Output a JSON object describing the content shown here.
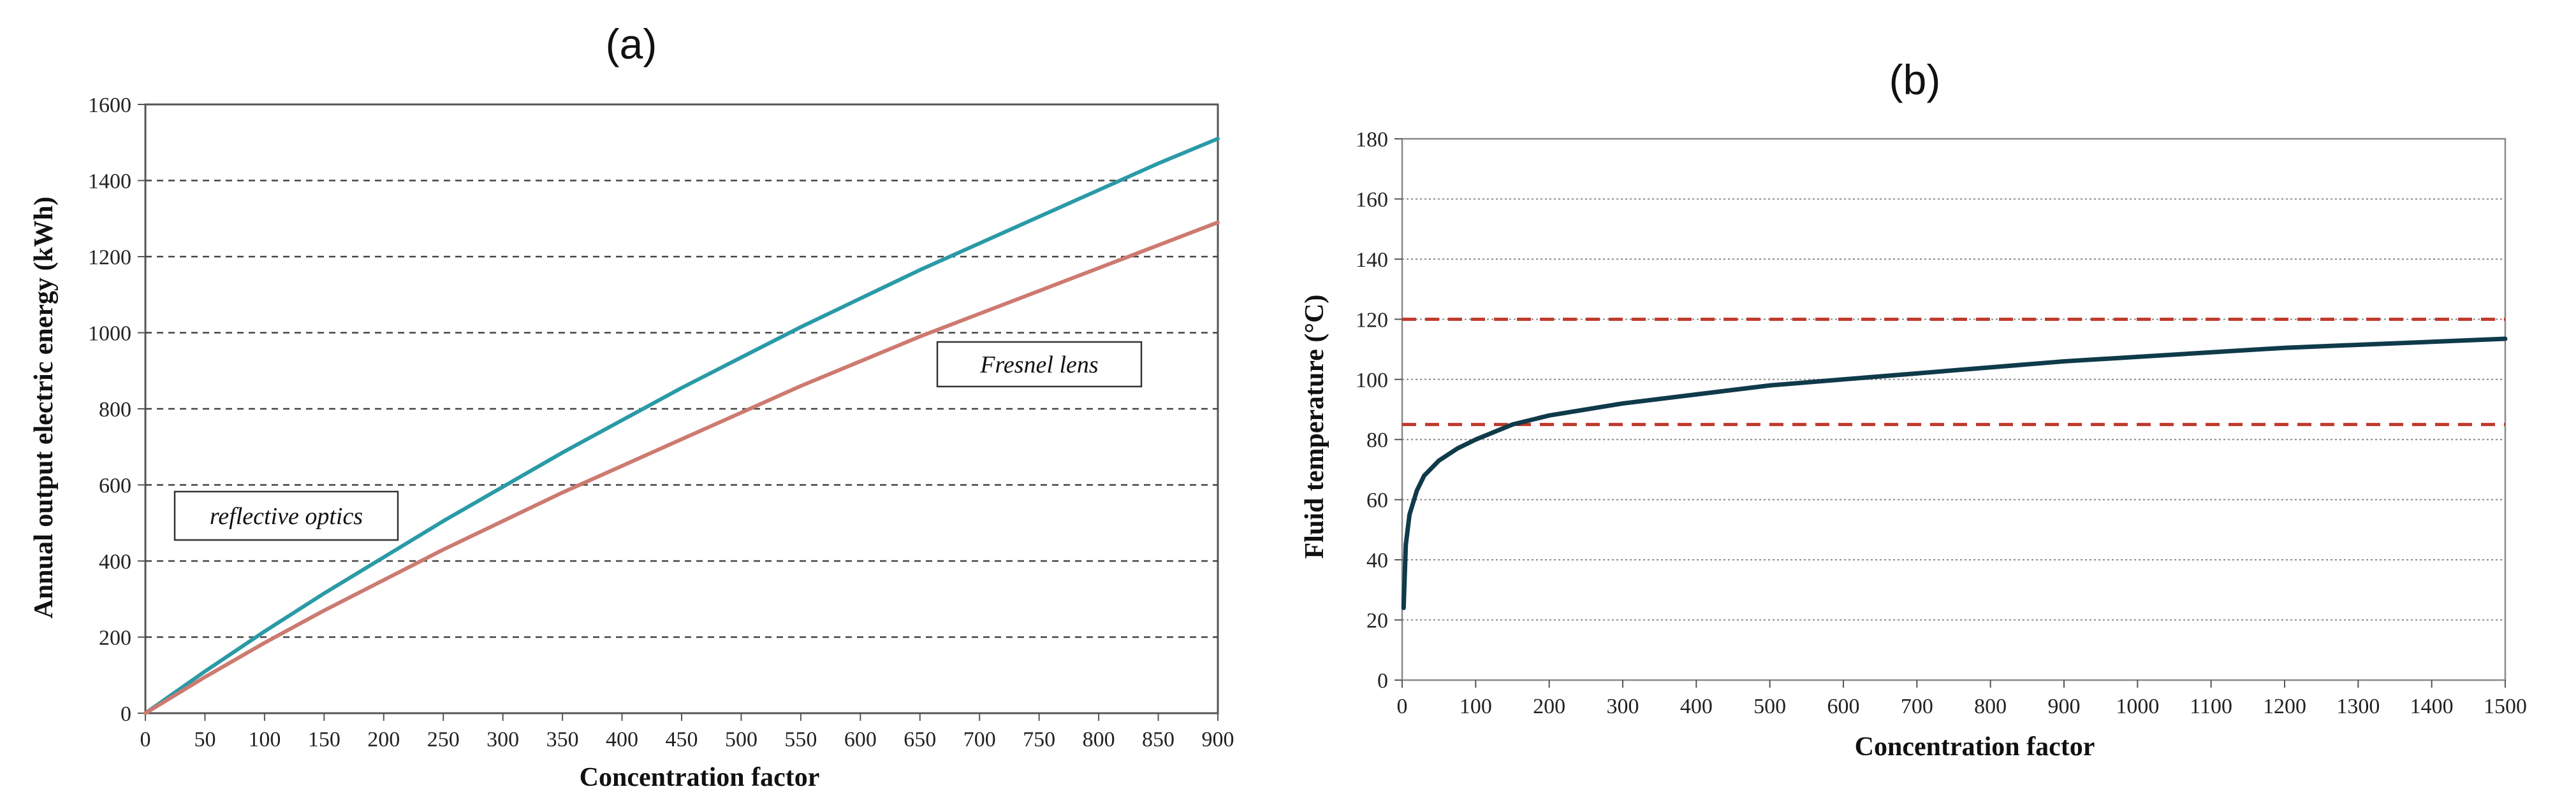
{
  "chart_data": [
    {
      "panel_label": "(a)",
      "type": "line",
      "xlabel": "Concentration factor",
      "ylabel": "Annual output electric energy (kWh)",
      "xlim": [
        0,
        900
      ],
      "ylim": [
        0,
        1600
      ],
      "xticks": [
        0,
        50,
        100,
        150,
        200,
        250,
        300,
        350,
        400,
        450,
        500,
        550,
        600,
        650,
        700,
        750,
        800,
        850,
        900
      ],
      "yticks": [
        0,
        200,
        400,
        600,
        800,
        1000,
        1200,
        1400,
        1600
      ],
      "grid": "horizontal dashed",
      "colors": {
        "reflective": "#2a9aa6",
        "fresnel": "#cd7a70"
      },
      "annotations": [
        "reflective optics",
        "Fresnel lens"
      ],
      "series": [
        {
          "x": [
            0,
            50,
            100,
            150,
            200,
            250,
            300,
            350,
            400,
            450,
            500,
            550,
            600,
            650,
            700,
            750,
            800,
            850,
            900
          ],
          "values": [
            0,
            110,
            215,
            315,
            410,
            505,
            595,
            685,
            770,
            855,
            935,
            1015,
            1090,
            1165,
            1235,
            1305,
            1375,
            1445,
            1510
          ]
        },
        {
          "x": [
            0,
            50,
            100,
            150,
            200,
            250,
            300,
            350,
            400,
            450,
            500,
            550,
            600,
            650,
            700,
            750,
            800,
            850,
            900
          ],
          "values": [
            0,
            95,
            185,
            270,
            350,
            430,
            505,
            580,
            650,
            720,
            790,
            860,
            925,
            990,
            1050,
            1110,
            1170,
            1230,
            1290
          ]
        }
      ]
    },
    {
      "panel_label": "(b)",
      "type": "line",
      "xlabel": "Concentration factor",
      "ylabel": "Fluid temperature  (°C)",
      "xlim": [
        0,
        1500
      ],
      "ylim": [
        0,
        180
      ],
      "xticks": [
        0,
        100,
        200,
        300,
        400,
        500,
        600,
        700,
        800,
        900,
        1000,
        1100,
        1200,
        1300,
        1400,
        1500
      ],
      "yticks": [
        0,
        20,
        40,
        60,
        80,
        100,
        120,
        140,
        160,
        180
      ],
      "grid": "horizontal dotted",
      "colors": {
        "curve": "#0f3a4a",
        "reference": "#c0392b"
      },
      "reference_lines": [
        85,
        120
      ],
      "series": [
        {
          "x": [
            2,
            5,
            10,
            20,
            30,
            50,
            75,
            100,
            150,
            200,
            300,
            400,
            500,
            600,
            700,
            800,
            900,
            1000,
            1100,
            1200,
            1300,
            1400,
            1500
          ],
          "values": [
            24,
            45,
            55,
            63,
            68,
            73,
            77,
            80,
            85,
            88,
            92,
            95,
            98,
            100,
            102,
            104,
            106,
            107.5,
            109,
            110.5,
            111.5,
            112.5,
            113.5
          ]
        }
      ]
    }
  ]
}
